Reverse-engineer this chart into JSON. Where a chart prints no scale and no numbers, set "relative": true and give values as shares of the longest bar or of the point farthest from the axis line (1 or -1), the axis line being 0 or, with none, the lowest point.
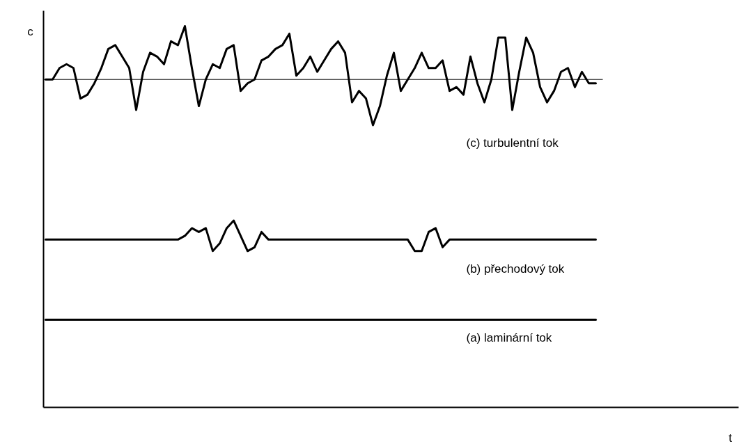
{
  "chart_data": {
    "type": "line",
    "relative": true,
    "annotations": [
      "t"
    ],
    "ylabel": "c",
    "categories": [
      null,
      null,
      null,
      null,
      null,
      null,
      null,
      null,
      null,
      null,
      null,
      null,
      null,
      null,
      null,
      null,
      null,
      null,
      null,
      null,
      null,
      null,
      null,
      null,
      null,
      null,
      null,
      null,
      null,
      null,
      null,
      null,
      null,
      null,
      null,
      null,
      null,
      null,
      null,
      null,
      null,
      null,
      null,
      null,
      null,
      null,
      null,
      null,
      null,
      null,
      null,
      null,
      null,
      null,
      null,
      null,
      null,
      null,
      null,
      null,
      null,
      null,
      null,
      null,
      null,
      null,
      null,
      null,
      null,
      null,
      null,
      null,
      null,
      null,
      null,
      null,
      null,
      null,
      null,
      null
    ],
    "series": [
      {
        "name": "(c) turbulentní tok",
        "color": "#000000",
        "values": [
          0.86,
          0.86,
          0.89,
          0.9,
          0.89,
          0.81,
          0.82,
          0.85,
          0.89,
          0.94,
          0.95,
          0.92,
          0.89,
          0.78,
          0.88,
          0.93,
          0.92,
          0.9,
          0.96,
          0.95,
          1.0,
          0.89,
          0.79,
          0.86,
          0.9,
          0.89,
          0.94,
          0.95,
          0.83,
          0.85,
          0.86,
          0.91,
          0.92,
          0.94,
          0.95,
          0.98,
          0.87,
          0.89,
          0.92,
          0.88,
          0.91,
          0.94,
          0.96,
          0.93,
          0.8,
          0.83,
          0.81,
          0.74,
          0.79,
          0.87,
          0.93,
          0.83,
          0.86,
          0.89,
          0.93,
          0.89,
          0.89,
          0.91,
          0.83,
          0.84,
          0.82,
          0.92,
          0.85,
          0.8,
          0.86,
          0.97,
          0.97,
          0.78,
          0.88,
          0.97,
          0.93,
          0.84,
          0.8,
          0.83,
          0.88,
          0.89,
          0.84,
          0.88,
          0.85,
          0.85
        ]
      },
      {
        "name": "(b) přechodový tok",
        "color": "#000000",
        "values": [
          0.44,
          0.44,
          0.44,
          0.44,
          0.44,
          0.44,
          0.44,
          0.44,
          0.44,
          0.44,
          0.44,
          0.44,
          0.44,
          0.44,
          0.44,
          0.44,
          0.44,
          0.44,
          0.44,
          0.44,
          0.45,
          0.47,
          0.46,
          0.47,
          0.41,
          0.43,
          0.47,
          0.49,
          0.45,
          0.41,
          0.42,
          0.46,
          0.44,
          0.44,
          0.44,
          0.44,
          0.44,
          0.44,
          0.44,
          0.44,
          0.44,
          0.44,
          0.44,
          0.44,
          0.44,
          0.44,
          0.44,
          0.44,
          0.44,
          0.44,
          0.44,
          0.44,
          0.44,
          0.41,
          0.41,
          0.46,
          0.47,
          0.42,
          0.44,
          0.44,
          0.44,
          0.44,
          0.44,
          0.44,
          0.44,
          0.44,
          0.44,
          0.44,
          0.44,
          0.44,
          0.44,
          0.44,
          0.44,
          0.44,
          0.44,
          0.44,
          0.44,
          0.44,
          0.44,
          0.44
        ]
      },
      {
        "name": "(a) laminární tok",
        "color": "#000000",
        "values": [
          0.23,
          0.23,
          0.23,
          0.23,
          0.23,
          0.23,
          0.23,
          0.23,
          0.23,
          0.23,
          0.23,
          0.23,
          0.23,
          0.23,
          0.23,
          0.23,
          0.23,
          0.23,
          0.23,
          0.23,
          0.23,
          0.23,
          0.23,
          0.23,
          0.23,
          0.23,
          0.23,
          0.23,
          0.23,
          0.23,
          0.23,
          0.23,
          0.23,
          0.23,
          0.23,
          0.23,
          0.23,
          0.23,
          0.23,
          0.23,
          0.23,
          0.23,
          0.23,
          0.23,
          0.23,
          0.23,
          0.23,
          0.23,
          0.23,
          0.23,
          0.23,
          0.23,
          0.23,
          0.23,
          0.23,
          0.23,
          0.23,
          0.23,
          0.23,
          0.23,
          0.23,
          0.23,
          0.23,
          0.23,
          0.23,
          0.23,
          0.23,
          0.23,
          0.23,
          0.23,
          0.23,
          0.23,
          0.23,
          0.23,
          0.23,
          0.23,
          0.23,
          0.23,
          0.23,
          0.23
        ]
      }
    ],
    "ref_lines": [
      {
        "axis": "y",
        "value": 0.86,
        "color": "#000000"
      }
    ]
  }
}
